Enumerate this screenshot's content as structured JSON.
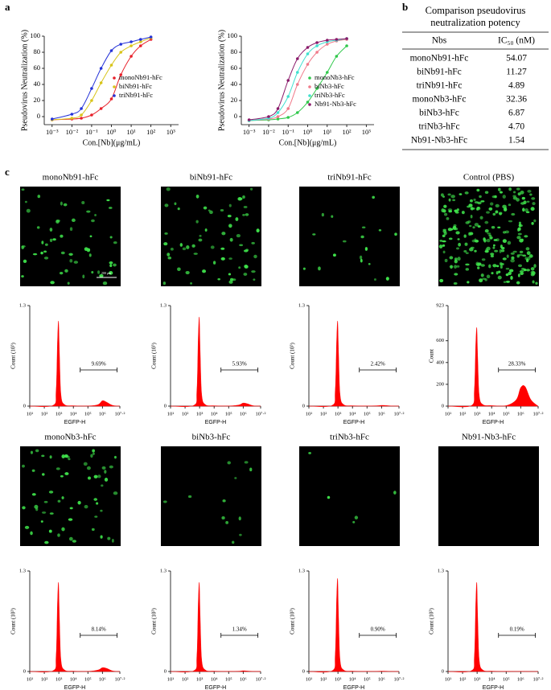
{
  "panels": [
    "a",
    "b",
    "c"
  ],
  "table": {
    "title_lines": [
      "Comparison pseudovirus",
      "neutralization potency"
    ],
    "header": [
      "Nbs",
      "IC₅₀ (nM)"
    ],
    "rows": [
      [
        "monoNb91-hFc",
        "54.07"
      ],
      [
        "biNb91-hFc",
        "11.27"
      ],
      [
        "triNb91-hFc",
        "4.89"
      ],
      [
        "monoNb3-hFc",
        "32.36"
      ],
      [
        "biNb3-hFc",
        "6.87"
      ],
      [
        "triNb3-hFc",
        "4.70"
      ],
      [
        "Nb91-Nb3-hFc",
        "1.54"
      ]
    ]
  },
  "images": [
    {
      "title": "monoNb91-hFc",
      "scale_bar": "200 μm"
    },
    {
      "title": "biNb91-hFc"
    },
    {
      "title": "triNb91-hFc"
    },
    {
      "title": "Control (PBS)"
    },
    {
      "title": "monoNb3-hFc"
    },
    {
      "title": "biNb3-hFc"
    },
    {
      "title": "triNb3-hFc"
    },
    {
      "title": "Nb91-Nb3-hFc"
    }
  ],
  "chart_data": [
    {
      "type": "line",
      "x_label": "Con.[Nb](μg/mL)",
      "y_label": "Pseudovirus Neutralization (%)",
      "xscale": "log",
      "legend": "lower right",
      "x": [
        0.001,
        0.01,
        0.03,
        0.1,
        0.3,
        1,
        3,
        10,
        30,
        100
      ],
      "series": [
        {
          "name": "monoNb91-hFc",
          "color": "#e8202a",
          "values": [
            -4,
            -3,
            -2,
            2,
            10,
            22,
            52,
            75,
            88,
            96
          ]
        },
        {
          "name": "biNb91-hFc",
          "color": "#d8c41a",
          "values": [
            -4,
            -2,
            2,
            20,
            42,
            64,
            80,
            88,
            93,
            98
          ]
        },
        {
          "name": "triNb91-hFc",
          "color": "#2432d8",
          "values": [
            -3,
            3,
            10,
            35,
            60,
            82,
            90,
            93,
            96,
            99
          ]
        }
      ],
      "xlim": [
        0.0004,
        2500
      ],
      "ylim": [
        -10,
        100
      ],
      "xticks": [
        {
          "value": 0.001,
          "label": "10⁻³"
        },
        {
          "value": 0.01,
          "label": "10⁻²"
        },
        {
          "value": 0.1,
          "label": "10⁻¹"
        },
        {
          "value": 1,
          "label": "10⁰"
        },
        {
          "value": 10,
          "label": "10¹"
        },
        {
          "value": 100,
          "label": "10²"
        },
        {
          "value": 1000,
          "label": "10³"
        }
      ],
      "yticks": [
        0,
        20,
        40,
        60,
        80,
        100
      ]
    },
    {
      "type": "line",
      "x_label": "Con.[Nb](μg/mL)",
      "y_label": "Pseudovirus Neutralization (%)",
      "xscale": "log",
      "legend": "lower right",
      "x": [
        0.001,
        0.01,
        0.03,
        0.1,
        0.3,
        1,
        3,
        10,
        30,
        100
      ],
      "series": [
        {
          "name": "monoNb3-hFc",
          "color": "#2fc84a",
          "values": [
            -5,
            -4,
            -3,
            -1,
            5,
            18,
            35,
            55,
            75,
            88
          ]
        },
        {
          "name": "biNb3-hFc",
          "color": "#f07a8a",
          "values": [
            -5,
            -3,
            0,
            10,
            40,
            65,
            80,
            90,
            94,
            96
          ]
        },
        {
          "name": "triNb3-hFc",
          "color": "#40e0d0",
          "values": [
            -5,
            -2,
            5,
            25,
            55,
            78,
            88,
            93,
            95,
            97
          ]
        },
        {
          "name": "Nb91-Nb3-hFc",
          "color": "#8a1a6a",
          "values": [
            -4,
            0,
            10,
            45,
            72,
            86,
            92,
            95,
            96,
            97
          ]
        }
      ],
      "xlim": [
        0.0004,
        2500
      ],
      "ylim": [
        -10,
        100
      ],
      "xticks": [
        {
          "value": 0.001,
          "label": "10⁻³"
        },
        {
          "value": 0.01,
          "label": "10⁻²"
        },
        {
          "value": 0.1,
          "label": "10⁻¹"
        },
        {
          "value": 1,
          "label": "10⁰"
        },
        {
          "value": 10,
          "label": "10¹"
        },
        {
          "value": 100,
          "label": "10²"
        },
        {
          "value": 1000,
          "label": "10³"
        }
      ],
      "yticks": [
        0,
        20,
        40,
        60,
        80,
        100
      ]
    },
    {
      "type": "area",
      "color": "#ff0000",
      "x_label": "EGFP-H",
      "y_label": "Count (10³)",
      "xscale": "log",
      "annotation": "9.69%",
      "x": [
        10,
        400,
        650,
        800,
        950,
        1100,
        1400,
        2500,
        10000,
        100000,
        500000,
        1000000,
        2000000,
        5000000,
        15800000
      ],
      "values": [
        0,
        0.01,
        0.2,
        0.8,
        1.1,
        0.7,
        0.15,
        0.02,
        0.005,
        0.002,
        0.02,
        0.07,
        0.05,
        0.01,
        0
      ],
      "xlim": [
        10,
        15848932
      ],
      "ylim": [
        0,
        1.3
      ],
      "yticks": [
        0,
        1.3
      ],
      "xticks": [
        {
          "value": 10,
          "label": "10¹"
        },
        {
          "value": 100,
          "label": "10²"
        },
        {
          "value": 1000,
          "label": "10³"
        },
        {
          "value": 10000,
          "label": "10⁴"
        },
        {
          "value": 100000,
          "label": "10⁵"
        },
        {
          "value": 1000000,
          "label": "10⁶"
        },
        {
          "value": 15848932,
          "label": "10⁷·²"
        }
      ]
    },
    {
      "type": "area",
      "color": "#ff0000",
      "x_label": "EGFP-H",
      "y_label": "Count (10³)",
      "xscale": "log",
      "annotation": "5.93%",
      "x": [
        10,
        400,
        650,
        800,
        950,
        1100,
        1400,
        2500,
        10000,
        100000,
        500000,
        1000000,
        2000000,
        5000000,
        15800000
      ],
      "values": [
        0,
        0.01,
        0.2,
        0.85,
        1.15,
        0.7,
        0.15,
        0.02,
        0.005,
        0.002,
        0.015,
        0.04,
        0.03,
        0.005,
        0
      ],
      "xlim": [
        10,
        15848932
      ],
      "ylim": [
        0,
        1.3
      ],
      "yticks": [
        0,
        1.3
      ],
      "xticks": [
        {
          "value": 10,
          "label": "10¹"
        },
        {
          "value": 100,
          "label": "10²"
        },
        {
          "value": 1000,
          "label": "10³"
        },
        {
          "value": 10000,
          "label": "10⁴"
        },
        {
          "value": 100000,
          "label": "10⁵"
        },
        {
          "value": 1000000,
          "label": "10⁶"
        },
        {
          "value": 15848932,
          "label": "10⁷·²"
        }
      ]
    },
    {
      "type": "area",
      "color": "#ff0000",
      "x_label": "EGFP-H",
      "y_label": "Count (10³)",
      "xscale": "log",
      "annotation": "2.42%",
      "x": [
        10,
        400,
        650,
        800,
        950,
        1100,
        1400,
        2500,
        10000,
        100000,
        500000,
        1000000,
        2000000,
        5000000,
        15800000
      ],
      "values": [
        0,
        0.01,
        0.2,
        0.8,
        1.1,
        0.7,
        0.15,
        0.02,
        0.005,
        0.002,
        0.005,
        0.01,
        0.008,
        0.002,
        0
      ],
      "xlim": [
        10,
        15848932
      ],
      "ylim": [
        0,
        1.3
      ],
      "yticks": [
        0,
        1.3
      ],
      "xticks": [
        {
          "value": 10,
          "label": "10¹"
        },
        {
          "value": 100,
          "label": "10²"
        },
        {
          "value": 1000,
          "label": "10³"
        },
        {
          "value": 10000,
          "label": "10⁴"
        },
        {
          "value": 100000,
          "label": "10⁵"
        },
        {
          "value": 1000000,
          "label": "10⁶"
        },
        {
          "value": 15848932,
          "label": "10⁷·²"
        }
      ]
    },
    {
      "type": "area",
      "color": "#ff0000",
      "x_label": "EGFP-H",
      "y_label": "Count",
      "xscale": "log",
      "annotation": "28.33%",
      "x": [
        10,
        400,
        650,
        800,
        950,
        1100,
        1400,
        2500,
        10000,
        100000,
        500000,
        1000000,
        2000000,
        5000000,
        15800000
      ],
      "values": [
        0,
        5,
        150,
        550,
        720,
        450,
        100,
        15,
        5,
        5,
        60,
        170,
        180,
        60,
        0
      ],
      "xlim": [
        10,
        15848932
      ],
      "ylim": [
        0,
        923
      ],
      "yticks": [
        0,
        200,
        400,
        600,
        923
      ],
      "xticks": [
        {
          "value": 10,
          "label": "10¹"
        },
        {
          "value": 100,
          "label": "10²"
        },
        {
          "value": 1000,
          "label": "10³"
        },
        {
          "value": 10000,
          "label": "10⁴"
        },
        {
          "value": 100000,
          "label": "10⁵"
        },
        {
          "value": 1000000,
          "label": "10⁶"
        },
        {
          "value": 15848932,
          "label": "10⁷·²"
        }
      ]
    },
    {
      "type": "area",
      "color": "#ff0000",
      "x_label": "EGFP-H",
      "y_label": "Count (10³)",
      "xscale": "log",
      "annotation": "8.14%",
      "x": [
        10,
        400,
        650,
        800,
        950,
        1100,
        1400,
        2500,
        10000,
        100000,
        500000,
        1000000,
        2000000,
        5000000,
        15800000
      ],
      "values": [
        0,
        0.01,
        0.2,
        0.85,
        1.15,
        0.7,
        0.15,
        0.02,
        0.005,
        0.002,
        0.02,
        0.05,
        0.04,
        0.008,
        0
      ],
      "xlim": [
        10,
        15848932
      ],
      "ylim": [
        0,
        1.3
      ],
      "yticks": [
        0,
        1.3
      ],
      "xticks": [
        {
          "value": 10,
          "label": "10¹"
        },
        {
          "value": 100,
          "label": "10²"
        },
        {
          "value": 1000,
          "label": "10³"
        },
        {
          "value": 10000,
          "label": "10⁴"
        },
        {
          "value": 100000,
          "label": "10⁵"
        },
        {
          "value": 1000000,
          "label": "10⁶"
        },
        {
          "value": 15848932,
          "label": "10⁷·²"
        }
      ]
    },
    {
      "type": "area",
      "color": "#ff0000",
      "x_label": "EGFP-H",
      "y_label": "Count (10³)",
      "xscale": "log",
      "annotation": "1.34%",
      "x": [
        10,
        400,
        650,
        800,
        950,
        1100,
        1400,
        2500,
        10000,
        100000,
        500000,
        1000000,
        2000000,
        5000000,
        15800000
      ],
      "values": [
        0,
        0.01,
        0.2,
        0.85,
        1.15,
        0.7,
        0.15,
        0.02,
        0.005,
        0.002,
        0.004,
        0.01,
        0.006,
        0.002,
        0
      ],
      "xlim": [
        10,
        15848932
      ],
      "ylim": [
        0,
        1.3
      ],
      "yticks": [
        0,
        1.3
      ],
      "xticks": [
        {
          "value": 10,
          "label": "10¹"
        },
        {
          "value": 100,
          "label": "10²"
        },
        {
          "value": 1000,
          "label": "10³"
        },
        {
          "value": 10000,
          "label": "10⁴"
        },
        {
          "value": 100000,
          "label": "10⁵"
        },
        {
          "value": 1000000,
          "label": "10⁶"
        },
        {
          "value": 15848932,
          "label": "10⁷·²"
        }
      ]
    },
    {
      "type": "area",
      "color": "#ff0000",
      "x_label": "EGFP-H",
      "y_label": "Count (10³)",
      "xscale": "log",
      "annotation": "0.90%",
      "x": [
        10,
        400,
        650,
        800,
        950,
        1100,
        1400,
        2500,
        10000,
        100000,
        500000,
        1000000,
        2000000,
        5000000,
        15800000
      ],
      "values": [
        0,
        0.01,
        0.22,
        0.9,
        1.2,
        0.72,
        0.15,
        0.02,
        0.005,
        0.002,
        0.003,
        0.005,
        0.004,
        0.001,
        0
      ],
      "xlim": [
        10,
        15848932
      ],
      "ylim": [
        0,
        1.3
      ],
      "yticks": [
        0,
        1.3
      ],
      "xticks": [
        {
          "value": 10,
          "label": "10¹"
        },
        {
          "value": 100,
          "label": "10²"
        },
        {
          "value": 1000,
          "label": "10³"
        },
        {
          "value": 10000,
          "label": "10⁴"
        },
        {
          "value": 100000,
          "label": "10⁵"
        },
        {
          "value": 1000000,
          "label": "10⁶"
        },
        {
          "value": 15848932,
          "label": "10⁷·²"
        }
      ]
    },
    {
      "type": "area",
      "color": "#ff0000",
      "x_label": "EGFP-H",
      "y_label": "Count (10³)",
      "xscale": "log",
      "annotation": "0.19%",
      "x": [
        10,
        400,
        650,
        800,
        950,
        1100,
        1400,
        2500,
        10000,
        100000,
        500000,
        1000000,
        2000000,
        5000000,
        15800000
      ],
      "values": [
        0,
        0.01,
        0.2,
        0.85,
        1.15,
        0.7,
        0.15,
        0.02,
        0.005,
        0.002,
        0.001,
        0.002,
        0.001,
        0,
        0
      ],
      "xlim": [
        10,
        15848932
      ],
      "ylim": [
        0,
        1.3
      ],
      "yticks": [
        0,
        1.3
      ],
      "xticks": [
        {
          "value": 10,
          "label": "10¹"
        },
        {
          "value": 100,
          "label": "10²"
        },
        {
          "value": 1000,
          "label": "10³"
        },
        {
          "value": 10000,
          "label": "10⁴"
        },
        {
          "value": 100000,
          "label": "10⁵"
        },
        {
          "value": 1000000,
          "label": "10⁶"
        },
        {
          "value": 15848932,
          "label": "10⁷·²"
        }
      ]
    }
  ]
}
